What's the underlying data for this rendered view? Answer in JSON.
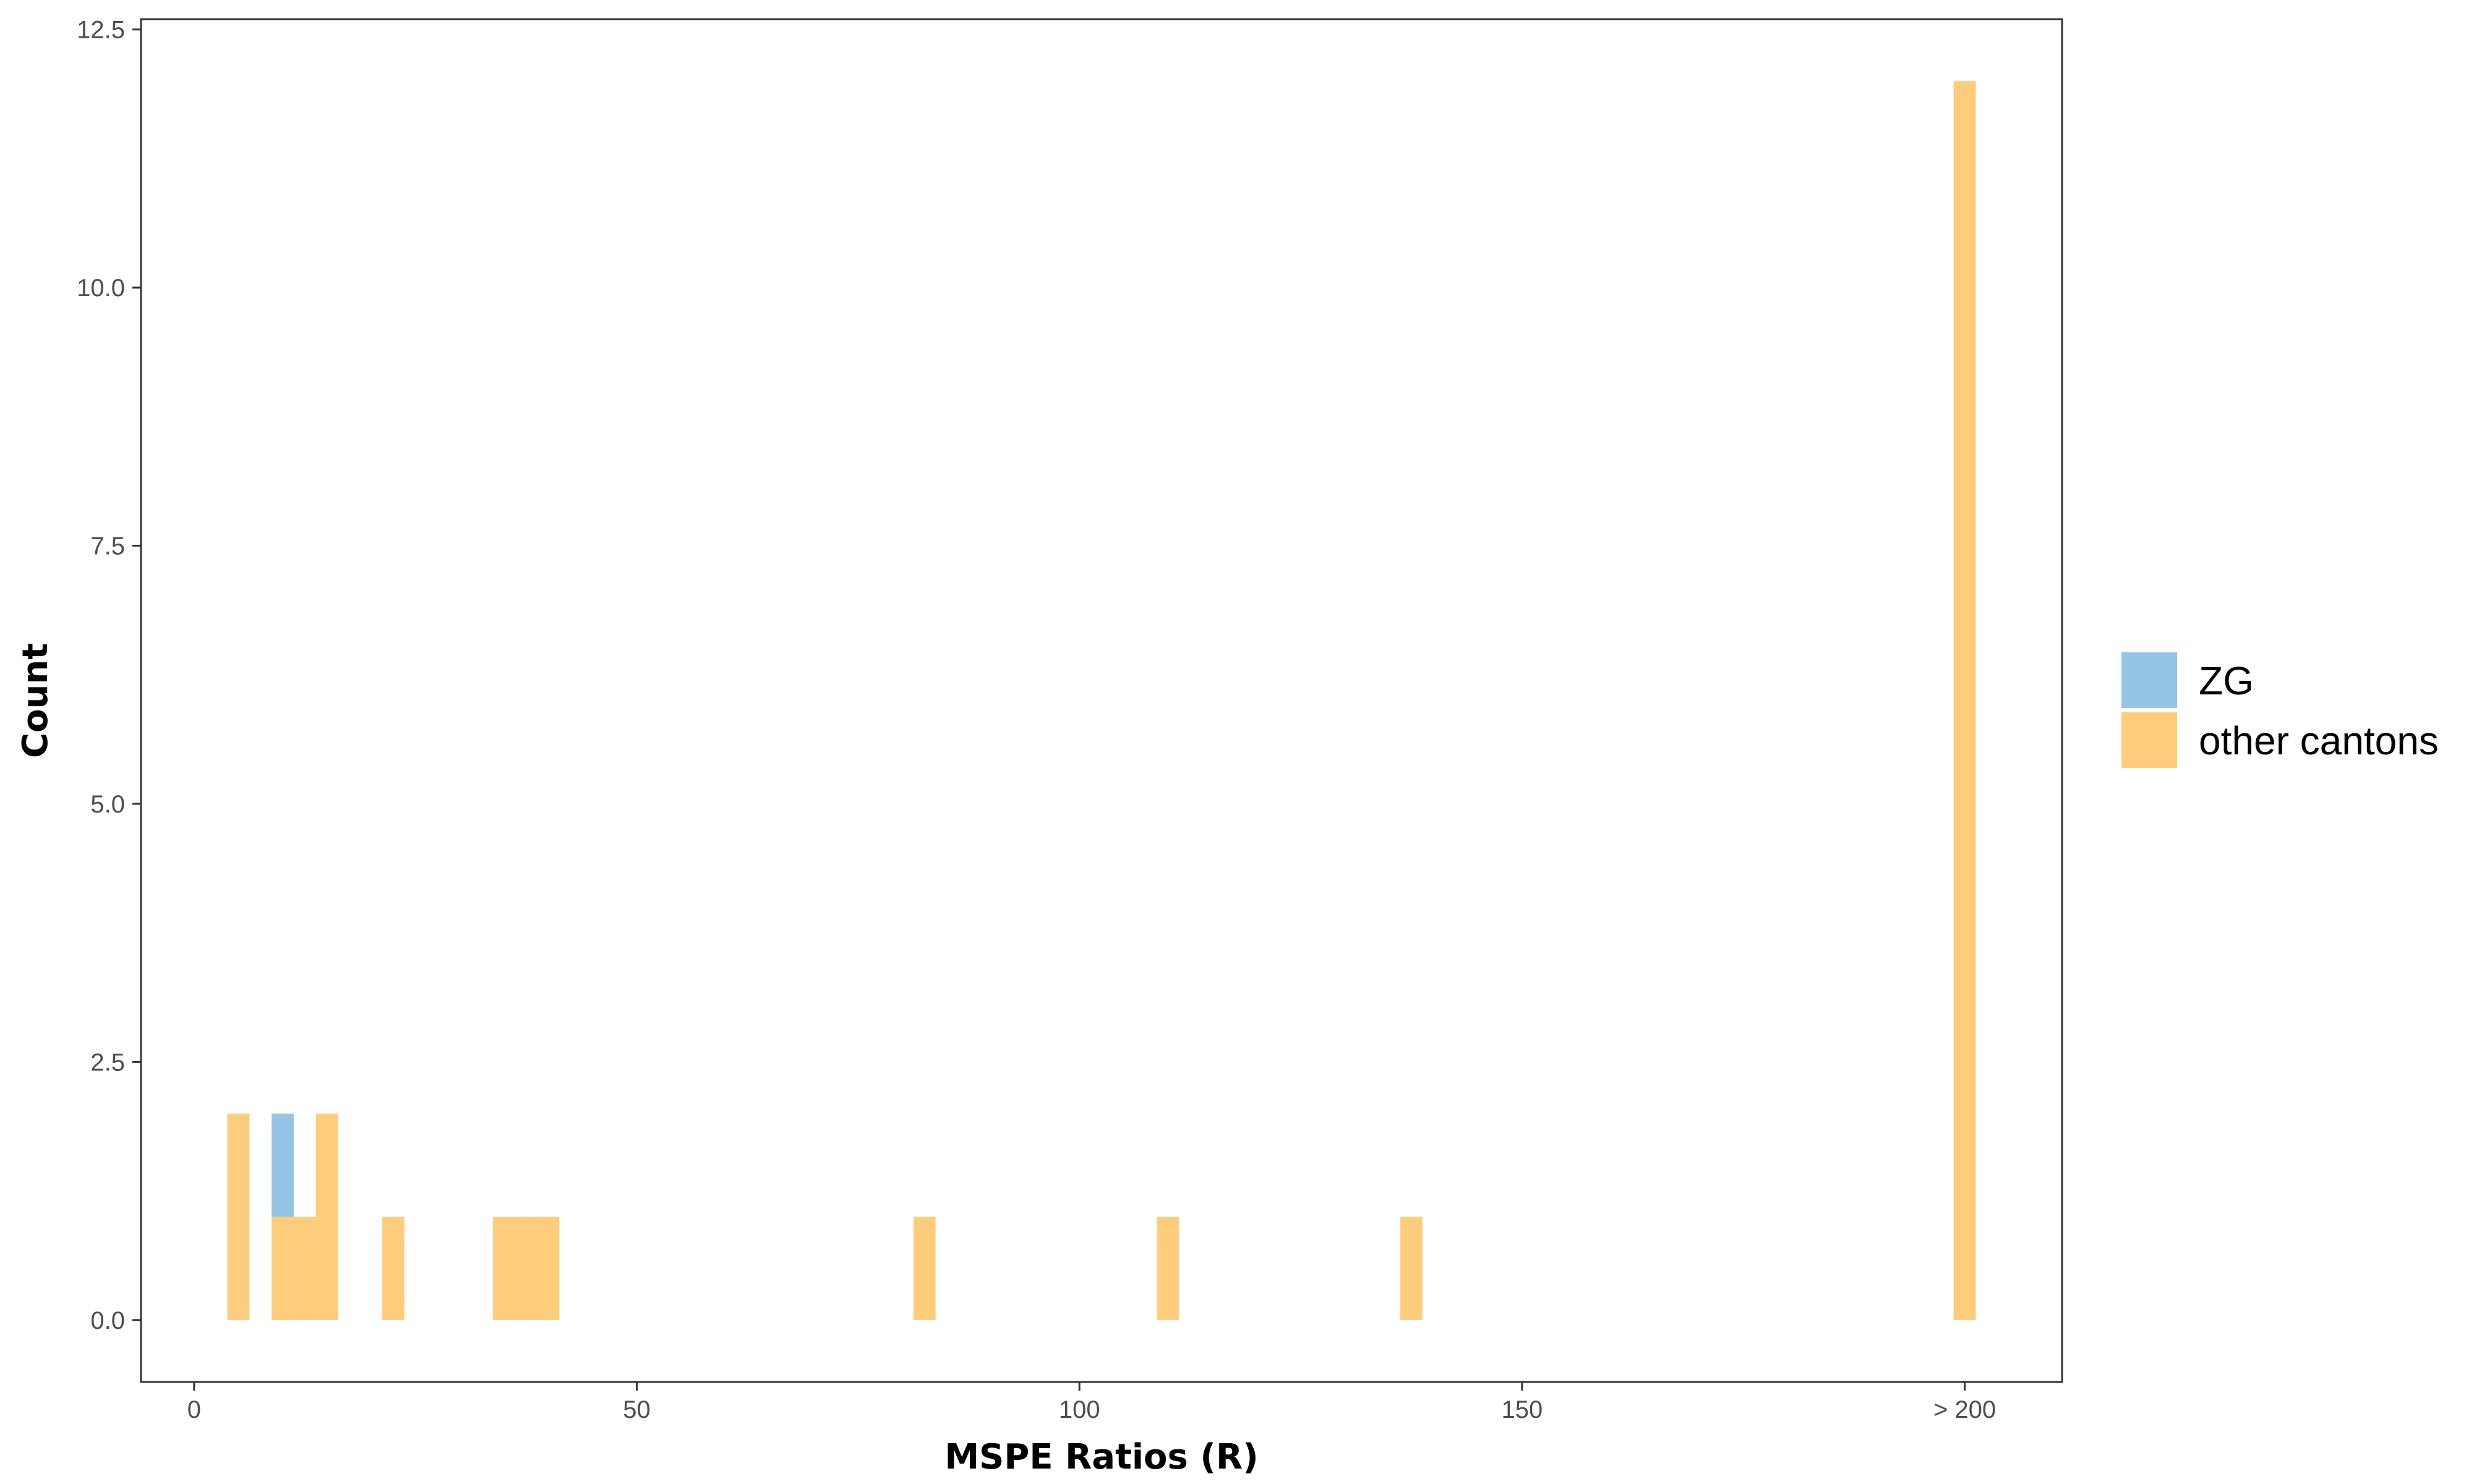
{
  "chart_data": {
    "type": "bar",
    "stacked": true,
    "xlabel": "MSPE Ratios (R)",
    "ylabel": "Count",
    "xlim": [
      -6,
      211
    ],
    "ylim": [
      -0.6,
      12.6
    ],
    "x_ticks": [
      {
        "value": 0,
        "label": "0"
      },
      {
        "value": 50,
        "label": "50"
      },
      {
        "value": 100,
        "label": "100"
      },
      {
        "value": 150,
        "label": "150"
      },
      {
        "value": 200,
        "label": "> 200"
      }
    ],
    "y_ticks": [
      {
        "value": 0,
        "label": "0.0"
      },
      {
        "value": 2.5,
        "label": "2.5"
      },
      {
        "value": 5,
        "label": "5.0"
      },
      {
        "value": 7.5,
        "label": "7.5"
      },
      {
        "value": 10,
        "label": "10.0"
      },
      {
        "value": 12.5,
        "label": "12.5"
      }
    ],
    "bin_width": 2.5,
    "series": [
      {
        "name": "other cantons",
        "color": "#fecd7b",
        "bins": [
          {
            "x": 5,
            "count": 2
          },
          {
            "x": 10,
            "count": 1
          },
          {
            "x": 12.5,
            "count": 1
          },
          {
            "x": 15,
            "count": 2
          },
          {
            "x": 22.5,
            "count": 1
          },
          {
            "x": 35,
            "count": 1
          },
          {
            "x": 37.5,
            "count": 1
          },
          {
            "x": 40,
            "count": 1
          },
          {
            "x": 82.5,
            "count": 1
          },
          {
            "x": 110,
            "count": 1
          },
          {
            "x": 137.5,
            "count": 1
          },
          {
            "x": 200,
            "count": 12
          }
        ]
      },
      {
        "name": "ZG",
        "color": "#94c4e6",
        "bins": [
          {
            "x": 10,
            "count": 1
          }
        ]
      }
    ],
    "legend": {
      "placement": "right",
      "entries": [
        {
          "label": "ZG",
          "color": "#94c4e6"
        },
        {
          "label": "other cantons",
          "color": "#fecd7b"
        }
      ]
    },
    "grid": false
  }
}
